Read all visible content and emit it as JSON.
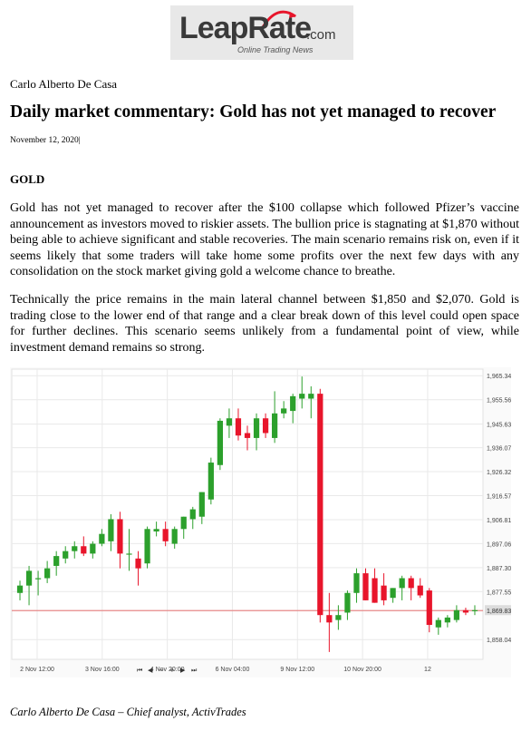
{
  "logo": {
    "word": "LeapRate",
    "suffix": ".com",
    "tagline": "Online Trading News"
  },
  "author": "Carlo Alberto De Casa",
  "title": "Daily market commentary: Gold has not yet managed to recover",
  "date": "November 12, 2020|",
  "section": "GOLD",
  "paragraphs": [
    "Gold has not yet managed to recover after the $100 collapse which followed Pfizer’s vaccine announcement as investors moved to riskier assets. The bullion price is stagnating at $1,870 without being able to achieve significant and stable recoveries. The main scenario remains risk on, even if it seems likely that some traders will take home some profits over the next few days with any consolidation on the stock market giving gold a welcome chance to breathe.",
    "Technically the price remains in the main lateral channel between $1,850 and $2,070. Gold is trading close to the lower end of that range and a clear break down of this level could open space for further declines. This scenario seems unlikely from a fundamental point of view, while investment demand remains so strong."
  ],
  "caption": "Carlo Alberto De Casa – Chief analyst, ActivTrades",
  "colors": {
    "up": "#2ca02c",
    "down": "#e8152b",
    "current_line": "#e88a8a",
    "grid": "#e9e9e9"
  },
  "chart_data": {
    "type": "candlestick",
    "ylim": [
      1850,
      1968
    ],
    "y_ticks": [
      "1,965.34",
      "1,955.56",
      "1,945.63",
      "1,936.07",
      "1,926.32",
      "1,916.57",
      "1,906.81",
      "1,897.06",
      "1,887.30",
      "1,877.55",
      "1,869.83",
      "1,858.04"
    ],
    "x_labels": [
      "2 Nov 12:00",
      "3 Nov 16:00",
      "4 Nov 20:00",
      "6 Nov 04:00",
      "9 Nov 12:00",
      "10 Nov 20:00",
      "12"
    ],
    "current_price": 1869.83,
    "nav_icons": [
      "first-icon",
      "prev-icon",
      "zoom-out-icon",
      "zoom-in-icon",
      "next-icon",
      "last-icon"
    ],
    "candles": [
      {
        "o": 1877,
        "h": 1882,
        "l": 1874,
        "c": 1880
      },
      {
        "o": 1880,
        "h": 1888,
        "l": 1872,
        "c": 1886
      },
      {
        "o": 1883,
        "h": 1886,
        "l": 1876,
        "c": 1883
      },
      {
        "o": 1883,
        "h": 1890,
        "l": 1881,
        "c": 1887
      },
      {
        "o": 1888,
        "h": 1894,
        "l": 1884,
        "c": 1892
      },
      {
        "o": 1891,
        "h": 1896,
        "l": 1889,
        "c": 1894
      },
      {
        "o": 1894,
        "h": 1898,
        "l": 1891,
        "c": 1896
      },
      {
        "o": 1896,
        "h": 1900,
        "l": 1892,
        "c": 1893
      },
      {
        "o": 1893,
        "h": 1898,
        "l": 1891,
        "c": 1897
      },
      {
        "o": 1897,
        "h": 1903,
        "l": 1896,
        "c": 1901
      },
      {
        "o": 1898,
        "h": 1909,
        "l": 1894,
        "c": 1907
      },
      {
        "o": 1907,
        "h": 1910,
        "l": 1887,
        "c": 1893
      },
      {
        "o": 1893,
        "h": 1903,
        "l": 1886,
        "c": 1893
      },
      {
        "o": 1891,
        "h": 1894,
        "l": 1880,
        "c": 1887
      },
      {
        "o": 1889,
        "h": 1904,
        "l": 1887,
        "c": 1903
      },
      {
        "o": 1902,
        "h": 1906,
        "l": 1900,
        "c": 1903
      },
      {
        "o": 1903,
        "h": 1906,
        "l": 1896,
        "c": 1898
      },
      {
        "o": 1897,
        "h": 1904,
        "l": 1895,
        "c": 1903
      },
      {
        "o": 1903,
        "h": 1908,
        "l": 1899,
        "c": 1908
      },
      {
        "o": 1907,
        "h": 1912,
        "l": 1903,
        "c": 1911
      },
      {
        "o": 1908,
        "h": 1918,
        "l": 1905,
        "c": 1918
      },
      {
        "o": 1915,
        "h": 1932,
        "l": 1913,
        "c": 1930
      },
      {
        "o": 1929,
        "h": 1948,
        "l": 1927,
        "c": 1947
      },
      {
        "o": 1945,
        "h": 1952,
        "l": 1940,
        "c": 1948
      },
      {
        "o": 1948,
        "h": 1952,
        "l": 1939,
        "c": 1941
      },
      {
        "o": 1942,
        "h": 1945,
        "l": 1935,
        "c": 1940
      },
      {
        "o": 1940,
        "h": 1950,
        "l": 1935,
        "c": 1948
      },
      {
        "o": 1948,
        "h": 1950,
        "l": 1940,
        "c": 1942
      },
      {
        "o": 1940,
        "h": 1959,
        "l": 1938,
        "c": 1950
      },
      {
        "o": 1950,
        "h": 1955,
        "l": 1948,
        "c": 1952
      },
      {
        "o": 1951,
        "h": 1958,
        "l": 1946,
        "c": 1957
      },
      {
        "o": 1956,
        "h": 1965,
        "l": 1952,
        "c": 1958
      },
      {
        "o": 1956,
        "h": 1961,
        "l": 1948,
        "c": 1958
      },
      {
        "o": 1958,
        "h": 1960,
        "l": 1865,
        "c": 1868
      },
      {
        "o": 1868,
        "h": 1877,
        "l": 1853,
        "c": 1865
      },
      {
        "o": 1866,
        "h": 1872,
        "l": 1862,
        "c": 1868
      },
      {
        "o": 1869,
        "h": 1878,
        "l": 1866,
        "c": 1877
      },
      {
        "o": 1877,
        "h": 1887,
        "l": 1873,
        "c": 1885
      },
      {
        "o": 1885,
        "h": 1887,
        "l": 1874,
        "c": 1874
      },
      {
        "o": 1883,
        "h": 1887,
        "l": 1873,
        "c": 1873
      },
      {
        "o": 1880,
        "h": 1885,
        "l": 1872,
        "c": 1874
      },
      {
        "o": 1875,
        "h": 1879,
        "l": 1873,
        "c": 1879
      },
      {
        "o": 1879,
        "h": 1884,
        "l": 1874,
        "c": 1883
      },
      {
        "o": 1883,
        "h": 1884,
        "l": 1874,
        "c": 1879
      },
      {
        "o": 1880,
        "h": 1883,
        "l": 1875,
        "c": 1876
      },
      {
        "o": 1878,
        "h": 1879,
        "l": 1861,
        "c": 1864
      },
      {
        "o": 1863,
        "h": 1867,
        "l": 1860,
        "c": 1866
      },
      {
        "o": 1865,
        "h": 1868,
        "l": 1863,
        "c": 1867
      },
      {
        "o": 1866,
        "h": 1872,
        "l": 1865,
        "c": 1870
      },
      {
        "o": 1870,
        "h": 1871,
        "l": 1868,
        "c": 1869
      },
      {
        "o": 1870,
        "h": 1872,
        "l": 1868,
        "c": 1870
      }
    ]
  }
}
